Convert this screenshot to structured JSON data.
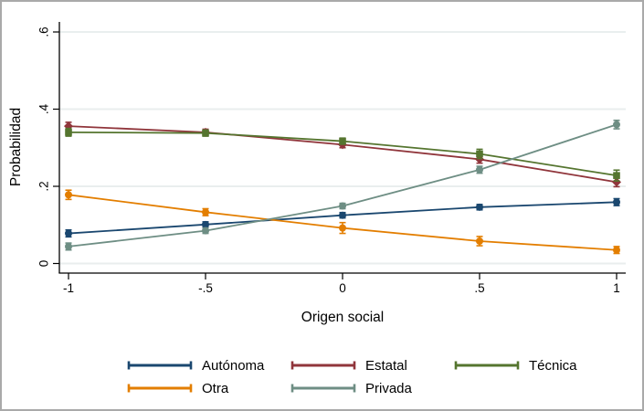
{
  "chart_data": {
    "type": "line",
    "title": "",
    "xlabel": "Origen social",
    "ylabel": "Probabilidad",
    "x": [
      -1,
      -0.5,
      0,
      0.5,
      1
    ],
    "xtick_labels": [
      "-1",
      "-.5",
      "0",
      ".5",
      "1"
    ],
    "yticks": [
      {
        "value": 0,
        "label": "0"
      },
      {
        "value": 0.2,
        "label": ".2"
      },
      {
        "value": 0.4,
        "label": ".4"
      },
      {
        "value": 0.6,
        "label": ".6"
      }
    ],
    "xlim": [
      -1.035,
      1.035
    ],
    "ylim": [
      0,
      0.627
    ],
    "grid": "horizontal",
    "grid_color": "#e9eeee",
    "axis_color": "#000000",
    "legend_position": "bottom",
    "legend_rows": [
      [
        0,
        1,
        2
      ],
      [
        3,
        4
      ]
    ],
    "error_bars": "capped vertical confidence intervals at each point",
    "series": [
      {
        "name": "Autónoma",
        "color": "#1a476f",
        "marker": "circle",
        "values": [
          0.078,
          0.101,
          0.125,
          0.146,
          0.159
        ],
        "ci_halfwidth": [
          0.009,
          0.007,
          0.007,
          0.007,
          0.009
        ]
      },
      {
        "name": "Estatal",
        "color": "#90353b",
        "marker": "diamond",
        "values": [
          0.356,
          0.34,
          0.308,
          0.27,
          0.211
        ],
        "ci_halfwidth": [
          0.01,
          0.008,
          0.008,
          0.01,
          0.012
        ]
      },
      {
        "name": "Técnica",
        "color": "#55752f",
        "marker": "square",
        "values": [
          0.34,
          0.338,
          0.317,
          0.284,
          0.228
        ],
        "ci_halfwidth": [
          0.01,
          0.008,
          0.008,
          0.012,
          0.014
        ]
      },
      {
        "name": "Otra",
        "color": "#e37e00",
        "marker": "circle",
        "values": [
          0.178,
          0.133,
          0.092,
          0.058,
          0.035
        ],
        "ci_halfwidth": [
          0.012,
          0.009,
          0.014,
          0.012,
          0.009
        ]
      },
      {
        "name": "Privada",
        "color": "#6e8e84",
        "marker": "circle",
        "values": [
          0.044,
          0.085,
          0.149,
          0.243,
          0.36
        ],
        "ci_halfwidth": [
          0.009,
          0.007,
          0.007,
          0.009,
          0.011
        ]
      }
    ]
  }
}
